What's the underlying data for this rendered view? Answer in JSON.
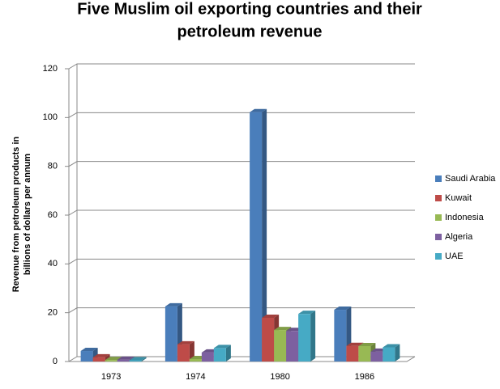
{
  "chart_data": {
    "type": "bar",
    "title": [
      "Five Muslim oil exporting countries and their",
      "petroleum revenue"
    ],
    "y_label": [
      "Revenue from petroleum products in",
      "billions of dollars per annum"
    ],
    "categories": [
      "1973",
      "1974",
      "1980",
      "1986"
    ],
    "series": [
      {
        "name": "Saudi Arabia",
        "color": "#4a7ebb",
        "values": [
          4.3,
          22.6,
          102.2,
          21.2
        ]
      },
      {
        "name": "Kuwait",
        "color": "#be4b48",
        "values": [
          1.7,
          7,
          17.9,
          6.4
        ]
      },
      {
        "name": "Indonesia",
        "color": "#98b954",
        "values": [
          0.6,
          1,
          12.9,
          6.3
        ]
      },
      {
        "name": "Algeria",
        "color": "#7d60a0",
        "values": [
          0.7,
          3.7,
          12.5,
          4
        ]
      },
      {
        "name": "UAE",
        "color": "#46aac5",
        "values": [
          0.5,
          5.5,
          19.5,
          5.8
        ]
      }
    ],
    "ylim": [
      0,
      120
    ],
    "yticks": [
      0,
      20,
      40,
      60,
      80,
      100,
      120
    ],
    "grid": true,
    "legend": "right"
  }
}
